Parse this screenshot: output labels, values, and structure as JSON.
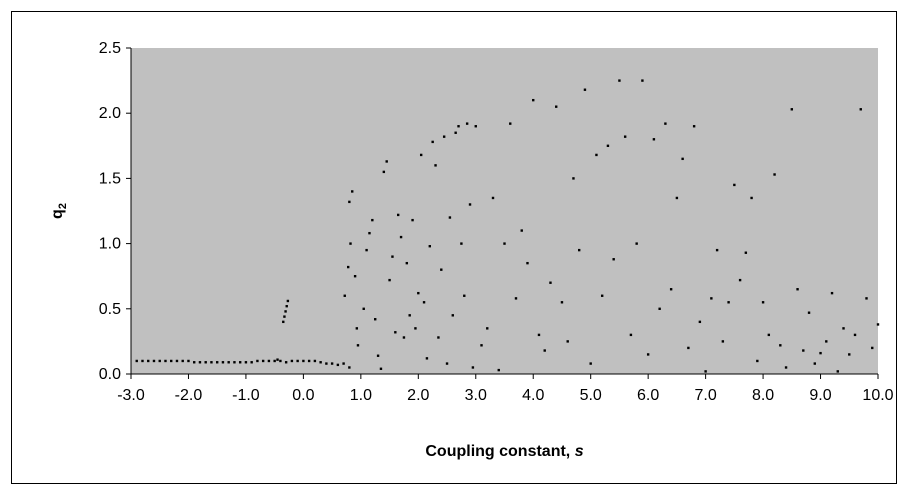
{
  "chart_data": {
    "type": "scatter",
    "title": "",
    "xlabel": "Coupling constant, ",
    "xlabel_italic": "s",
    "ylabel": "q",
    "ylabel_sub": "2",
    "xlim": [
      -3.0,
      10.0
    ],
    "ylim": [
      0.0,
      2.5
    ],
    "x_ticks": [
      "-3.0",
      "-2.0",
      "-1.0",
      "0.0",
      "1.0",
      "2.0",
      "3.0",
      "4.0",
      "5.0",
      "6.0",
      "7.0",
      "8.0",
      "9.0",
      "10.0"
    ],
    "y_ticks": [
      "0.0",
      "0.5",
      "1.0",
      "1.5",
      "2.0",
      "2.5"
    ],
    "grid": false,
    "legend": "none",
    "colors": {
      "plot_background": "#c0c0c0",
      "points": "#000000",
      "frame": "#000000"
    },
    "series": [
      {
        "points": [
          [
            -2.9,
            0.1
          ],
          [
            -2.8,
            0.1
          ],
          [
            -2.7,
            0.1
          ],
          [
            -2.6,
            0.1
          ],
          [
            -2.5,
            0.1
          ],
          [
            -2.4,
            0.1
          ],
          [
            -2.3,
            0.1
          ],
          [
            -2.2,
            0.1
          ],
          [
            -2.1,
            0.1
          ],
          [
            -2.0,
            0.1
          ],
          [
            -1.9,
            0.09
          ],
          [
            -1.8,
            0.09
          ],
          [
            -1.7,
            0.09
          ],
          [
            -1.6,
            0.09
          ],
          [
            -1.5,
            0.09
          ],
          [
            -1.4,
            0.09
          ],
          [
            -1.3,
            0.09
          ],
          [
            -1.2,
            0.09
          ],
          [
            -1.1,
            0.09
          ],
          [
            -1.0,
            0.09
          ],
          [
            -0.9,
            0.09
          ],
          [
            -0.8,
            0.1
          ],
          [
            -0.7,
            0.1
          ],
          [
            -0.6,
            0.1
          ],
          [
            -0.5,
            0.1
          ],
          [
            -0.45,
            0.11
          ],
          [
            -0.4,
            0.1
          ],
          [
            -0.3,
            0.09
          ],
          [
            -0.2,
            0.1
          ],
          [
            -0.1,
            0.1
          ],
          [
            0.0,
            0.1
          ],
          [
            0.1,
            0.1
          ],
          [
            0.2,
            0.1
          ],
          [
            0.3,
            0.09
          ],
          [
            0.4,
            0.08
          ],
          [
            0.5,
            0.08
          ],
          [
            0.6,
            0.07
          ],
          [
            0.7,
            0.08
          ],
          [
            -0.35,
            0.4
          ],
          [
            -0.33,
            0.44
          ],
          [
            -0.31,
            0.48
          ],
          [
            -0.29,
            0.52
          ],
          [
            -0.27,
            0.56
          ],
          [
            0.8,
            0.05
          ],
          [
            0.72,
            0.6
          ],
          [
            0.78,
            0.82
          ],
          [
            0.82,
            1.0
          ],
          [
            0.8,
            1.32
          ],
          [
            0.85,
            1.4
          ],
          [
            0.9,
            0.75
          ],
          [
            0.93,
            0.35
          ],
          [
            0.95,
            0.22
          ],
          [
            1.05,
            0.5
          ],
          [
            1.1,
            0.95
          ],
          [
            1.15,
            1.08
          ],
          [
            1.2,
            1.18
          ],
          [
            1.25,
            0.42
          ],
          [
            1.3,
            0.14
          ],
          [
            1.35,
            0.04
          ],
          [
            1.4,
            1.55
          ],
          [
            1.45,
            1.63
          ],
          [
            1.5,
            0.72
          ],
          [
            1.55,
            0.9
          ],
          [
            1.6,
            0.32
          ],
          [
            1.65,
            1.22
          ],
          [
            1.7,
            1.05
          ],
          [
            1.75,
            0.28
          ],
          [
            1.8,
            0.85
          ],
          [
            1.85,
            0.45
          ],
          [
            1.9,
            1.18
          ],
          [
            1.95,
            0.35
          ],
          [
            2.0,
            0.62
          ],
          [
            2.05,
            1.68
          ],
          [
            2.1,
            0.55
          ],
          [
            2.15,
            0.12
          ],
          [
            2.2,
            0.98
          ],
          [
            2.25,
            1.78
          ],
          [
            2.3,
            1.6
          ],
          [
            2.35,
            0.28
          ],
          [
            2.4,
            0.8
          ],
          [
            2.45,
            1.82
          ],
          [
            2.5,
            0.08
          ],
          [
            2.55,
            1.2
          ],
          [
            2.6,
            0.45
          ],
          [
            2.65,
            1.85
          ],
          [
            2.7,
            1.9
          ],
          [
            2.75,
            1.0
          ],
          [
            2.8,
            0.6
          ],
          [
            2.85,
            1.92
          ],
          [
            2.9,
            1.3
          ],
          [
            2.95,
            0.05
          ],
          [
            3.0,
            1.9
          ],
          [
            3.1,
            0.22
          ],
          [
            3.2,
            0.35
          ],
          [
            3.3,
            1.35
          ],
          [
            3.4,
            0.03
          ],
          [
            3.5,
            1.0
          ],
          [
            3.6,
            1.92
          ],
          [
            3.7,
            0.58
          ],
          [
            3.8,
            1.1
          ],
          [
            3.9,
            0.85
          ],
          [
            4.0,
            2.1
          ],
          [
            4.1,
            0.3
          ],
          [
            4.2,
            0.18
          ],
          [
            4.3,
            0.7
          ],
          [
            4.4,
            2.05
          ],
          [
            4.5,
            0.55
          ],
          [
            4.6,
            0.25
          ],
          [
            4.7,
            1.5
          ],
          [
            4.8,
            0.95
          ],
          [
            4.9,
            2.18
          ],
          [
            5.0,
            0.08
          ],
          [
            5.1,
            1.68
          ],
          [
            5.2,
            0.6
          ],
          [
            5.3,
            1.75
          ],
          [
            5.4,
            0.88
          ],
          [
            5.5,
            2.25
          ],
          [
            5.6,
            1.82
          ],
          [
            5.7,
            0.3
          ],
          [
            5.8,
            1.0
          ],
          [
            5.9,
            2.25
          ],
          [
            6.0,
            0.15
          ],
          [
            6.1,
            1.8
          ],
          [
            6.2,
            0.5
          ],
          [
            6.3,
            1.92
          ],
          [
            6.4,
            0.65
          ],
          [
            6.5,
            1.35
          ],
          [
            6.6,
            1.65
          ],
          [
            6.7,
            0.2
          ],
          [
            6.8,
            1.9
          ],
          [
            6.9,
            0.4
          ],
          [
            7.0,
            0.02
          ],
          [
            7.1,
            0.58
          ],
          [
            7.2,
            0.95
          ],
          [
            7.3,
            0.25
          ],
          [
            7.4,
            0.55
          ],
          [
            7.5,
            1.45
          ],
          [
            7.6,
            0.72
          ],
          [
            7.7,
            0.93
          ],
          [
            7.8,
            1.35
          ],
          [
            7.9,
            0.1
          ],
          [
            8.0,
            0.55
          ],
          [
            8.1,
            0.3
          ],
          [
            8.2,
            1.53
          ],
          [
            8.3,
            0.22
          ],
          [
            8.4,
            0.05
          ],
          [
            8.5,
            2.03
          ],
          [
            8.6,
            0.65
          ],
          [
            8.7,
            0.18
          ],
          [
            8.8,
            0.47
          ],
          [
            8.9,
            0.08
          ],
          [
            9.0,
            0.16
          ],
          [
            9.1,
            0.25
          ],
          [
            9.2,
            0.62
          ],
          [
            9.3,
            0.02
          ],
          [
            9.4,
            0.35
          ],
          [
            9.5,
            0.15
          ],
          [
            9.6,
            0.3
          ],
          [
            9.7,
            2.03
          ],
          [
            9.8,
            0.58
          ],
          [
            9.9,
            0.2
          ],
          [
            10.0,
            0.38
          ]
        ]
      }
    ]
  }
}
